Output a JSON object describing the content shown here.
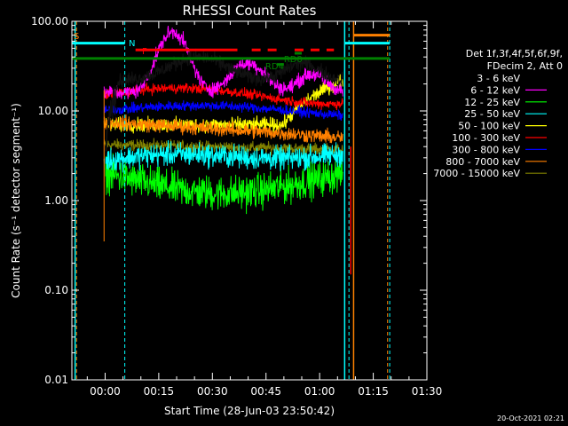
{
  "chart_data": {
    "type": "line",
    "title": "RHESSI Count Rates",
    "xlabel": "Start Time (28-Jun-03 23:50:42)",
    "ylabel": "Count Rate (s⁻¹ detector segment⁻¹)",
    "y_scale": "log",
    "ylim": [
      0.01,
      100
    ],
    "xlim": [
      "23:50:42",
      "01:30:00"
    ],
    "x_ticks": [
      "00:00",
      "00:15",
      "00:30",
      "00:45",
      "01:00",
      "01:15",
      "01:30"
    ],
    "y_ticks": [
      "0.01",
      "0.10",
      "1.00",
      "10.00",
      "100.00"
    ],
    "legend_header": [
      "Det 1f,3f,4f,5f,6f,9f,",
      "FDecim 2, Att 0"
    ],
    "legend_position": "right",
    "series": [
      {
        "name": "3 - 6 keV",
        "color": "#000000"
      },
      {
        "name": "6 - 12 keV",
        "color": "#ff00ff"
      },
      {
        "name": "12 - 25 keV",
        "color": "#00ff00"
      },
      {
        "name": "25 - 50 keV",
        "color": "#00ffff"
      },
      {
        "name": "50 - 100 keV",
        "color": "#ffff00"
      },
      {
        "name": "100 - 300 keV",
        "color": "#ff0000"
      },
      {
        "name": "300 - 800 keV",
        "color": "#0000ff"
      },
      {
        "name": "800 - 7000 keV",
        "color": "#ff8000"
      },
      {
        "name": "7000 - 15000 keV",
        "color": "#808000"
      }
    ],
    "flags": [
      {
        "label": "S",
        "color": "#ff8000"
      },
      {
        "label": "N",
        "color": "#00ffff"
      },
      {
        "label": "F",
        "color": "#ff0000"
      },
      {
        "label": "RD4",
        "color": "#008000"
      },
      {
        "label": "RD0",
        "color": "#008000"
      }
    ],
    "grid": false
  },
  "footer": {
    "timestamp": "20-Oct-2021 02:21"
  }
}
